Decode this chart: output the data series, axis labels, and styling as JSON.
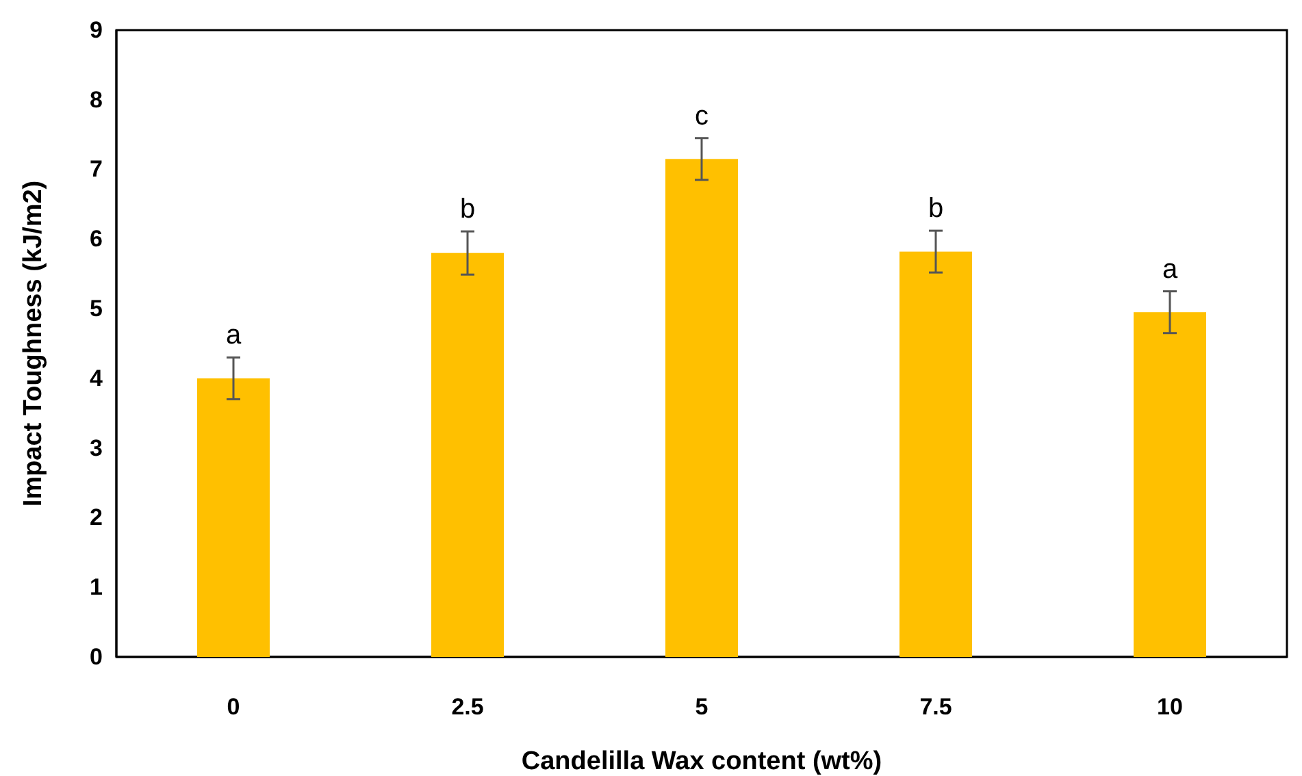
{
  "chart_data": {
    "type": "bar",
    "xlabel": "Candelilla Wax content (wt%)",
    "ylabel": "Impact Toughness (kJ/m2)",
    "categories": [
      "0",
      "2.5",
      "5",
      "7.5",
      "10"
    ],
    "series": [
      {
        "color": "#ffc000",
        "values": [
          4.0,
          5.8,
          7.15,
          5.82,
          4.95
        ],
        "errors": [
          0.3,
          0.31,
          0.3,
          0.3,
          0.3
        ]
      }
    ],
    "ylim": [
      0,
      9
    ],
    "yticks": [
      0,
      1,
      2,
      3,
      4,
      5,
      6,
      7,
      8,
      9
    ],
    "grid": false,
    "annotations": [
      {
        "text": "a",
        "x": "0",
        "y": 4.3
      },
      {
        "text": "b",
        "x": "2.5",
        "y": 6.11
      },
      {
        "text": "c",
        "x": "5",
        "y": 7.45
      },
      {
        "text": "b",
        "x": "7.5",
        "y": 6.12
      },
      {
        "text": "a",
        "x": "10",
        "y": 5.25
      }
    ]
  }
}
